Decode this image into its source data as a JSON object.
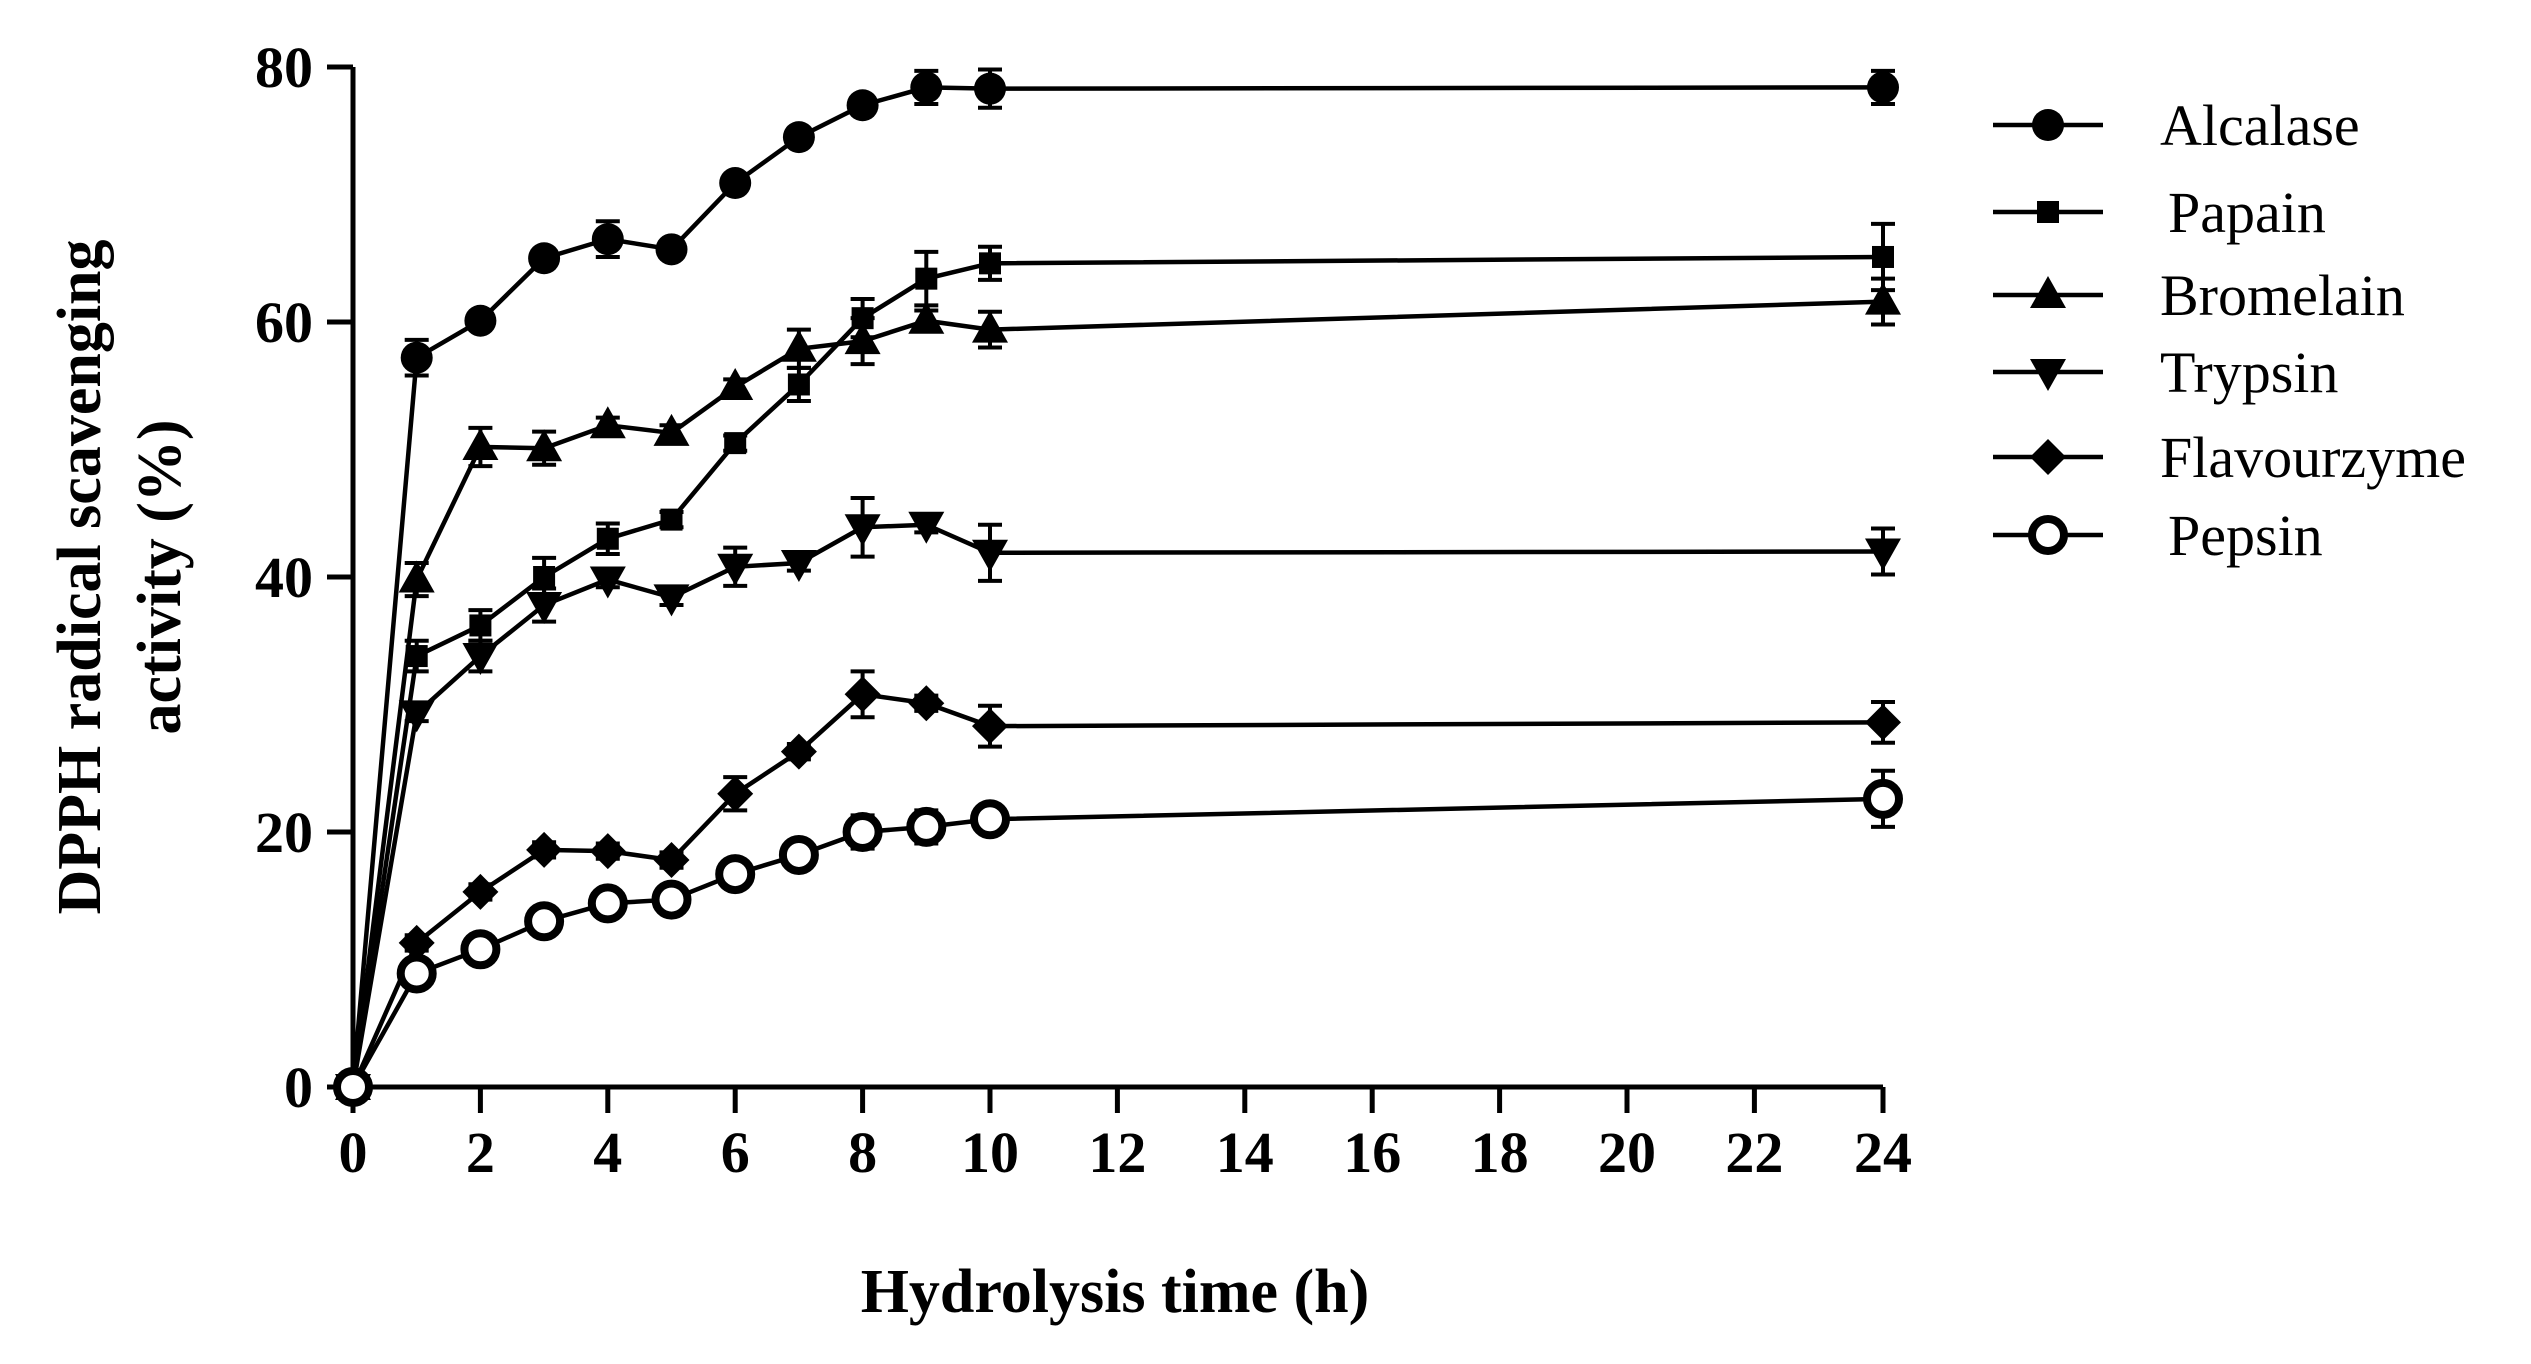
{
  "chart_data": {
    "type": "line",
    "xlabel": "Hydrolysis time (h)",
    "ylabel": "DPPH radical scavenging activity (%)",
    "ylabel_lines": [
      "DPPH radical scavenging",
      "activity (%)"
    ],
    "ylim": [
      0,
      80
    ],
    "yticks": [
      0,
      20,
      40,
      60,
      80
    ],
    "xticks": [
      0,
      2,
      4,
      6,
      8,
      10,
      12,
      14,
      16,
      18,
      20,
      22,
      24
    ],
    "x_break": "axis compressed between 22 and 24",
    "grid": false,
    "legend_position": "right",
    "series": [
      {
        "name": "Alcalase",
        "marker": "circle",
        "x": [
          0,
          1,
          2,
          3,
          4,
          5,
          6,
          7,
          8,
          9,
          10,
          24
        ],
        "y": [
          0,
          57.2,
          60.1,
          65.0,
          66.5,
          65.7,
          70.9,
          74.5,
          77.0,
          78.4,
          78.3,
          78.4
        ],
        "err": [
          0,
          1.4,
          0.6,
          0.6,
          1.4,
          0.6,
          0.6,
          0.6,
          0.6,
          1.3,
          1.5,
          1.3
        ]
      },
      {
        "name": "Papain",
        "marker": "square",
        "x": [
          0,
          1,
          2,
          3,
          4,
          5,
          6,
          7,
          8,
          9,
          10,
          24
        ],
        "y": [
          0,
          33.8,
          36.2,
          40.0,
          43.0,
          44.5,
          50.5,
          55.1,
          60.3,
          63.4,
          64.6,
          65.1
        ],
        "err": [
          0,
          1.2,
          1.2,
          1.5,
          1.2,
          0.6,
          0.6,
          1.3,
          1.5,
          2.1,
          1.3,
          2.6
        ]
      },
      {
        "name": "Bromelain",
        "marker": "triangle-up",
        "x": [
          0,
          1,
          2,
          3,
          4,
          5,
          6,
          7,
          8,
          9,
          10,
          24
        ],
        "y": [
          0,
          39.8,
          50.2,
          50.1,
          51.9,
          51.3,
          54.9,
          57.9,
          58.5,
          60.1,
          59.4,
          61.6
        ],
        "err": [
          0,
          1.3,
          1.5,
          1.3,
          0.6,
          0.6,
          0.6,
          1.5,
          1.8,
          0.8,
          1.4,
          1.8
        ]
      },
      {
        "name": "Trypsin",
        "marker": "triangle-down",
        "x": [
          0,
          1,
          2,
          3,
          4,
          5,
          6,
          7,
          8,
          9,
          10,
          24
        ],
        "y": [
          0,
          29.3,
          33.8,
          37.8,
          39.8,
          38.4,
          40.8,
          41.1,
          43.9,
          44.1,
          41.9,
          42.0
        ],
        "err": [
          0,
          0.6,
          1.2,
          1.3,
          0.6,
          0.6,
          1.5,
          0.6,
          2.3,
          0.6,
          2.2,
          1.8
        ]
      },
      {
        "name": "Flavourzyme",
        "marker": "diamond",
        "x": [
          0,
          1,
          2,
          3,
          4,
          5,
          6,
          7,
          8,
          9,
          10,
          24
        ],
        "y": [
          0,
          11.3,
          15.3,
          18.6,
          18.5,
          17.8,
          23.0,
          26.3,
          30.8,
          30.1,
          28.3,
          28.6
        ],
        "err": [
          0,
          0.6,
          0.6,
          0.6,
          0.6,
          0.6,
          1.3,
          0.6,
          1.8,
          0.6,
          1.6,
          1.6
        ]
      },
      {
        "name": "Pepsin",
        "marker": "open-circle",
        "x": [
          0,
          1,
          2,
          3,
          4,
          5,
          6,
          7,
          8,
          9,
          10,
          24
        ],
        "y": [
          0,
          8.9,
          10.8,
          13.0,
          14.4,
          14.7,
          16.7,
          18.2,
          20.0,
          20.4,
          21.0,
          22.6
        ],
        "err": [
          0,
          0.6,
          0.6,
          0.6,
          0.6,
          0.6,
          0.6,
          0.6,
          1.3,
          1.3,
          0.6,
          2.2
        ]
      }
    ]
  }
}
